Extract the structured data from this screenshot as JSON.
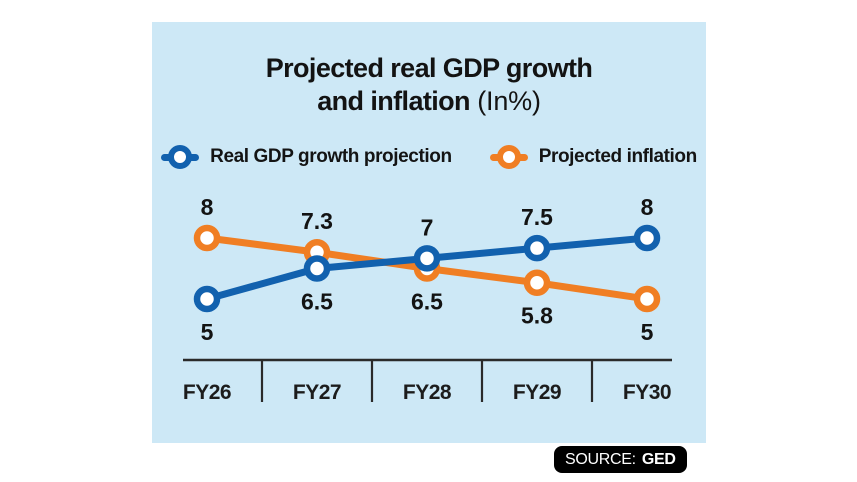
{
  "title": {
    "line1": "Projected real GDP growth",
    "line2_bold": "and inflation",
    "line2_normal": " (In%)"
  },
  "legend": [
    {
      "label": "Real GDP growth projection",
      "color_key": "gdp_blue"
    },
    {
      "label": "Projected inflation",
      "color_key": "inflation_orange"
    }
  ],
  "source": {
    "prefix": "SOURCE:",
    "name": "GED"
  },
  "colors": {
    "card_bg": "#cde8f6",
    "gdp_blue": "#1261ae",
    "inflation_orange": "#f07e23",
    "label_text": "#131313",
    "axis": "#2a2a2a"
  },
  "chart_data": {
    "type": "line",
    "title": "Projected real GDP growth and inflation (In%)",
    "categories": [
      "FY26",
      "FY27",
      "FY28",
      "FY29",
      "FY30"
    ],
    "series": [
      {
        "name": "Real GDP growth projection",
        "color_key": "gdp_blue",
        "values": [
          5,
          6.5,
          7,
          7.5,
          8
        ]
      },
      {
        "name": "Projected inflation",
        "color_key": "inflation_orange",
        "values": [
          8,
          7.3,
          6.5,
          5.8,
          5
        ]
      }
    ],
    "ylim": [
      5,
      8
    ],
    "unit": "In%",
    "grid": false,
    "legend_position": "top",
    "data_labels": true
  }
}
